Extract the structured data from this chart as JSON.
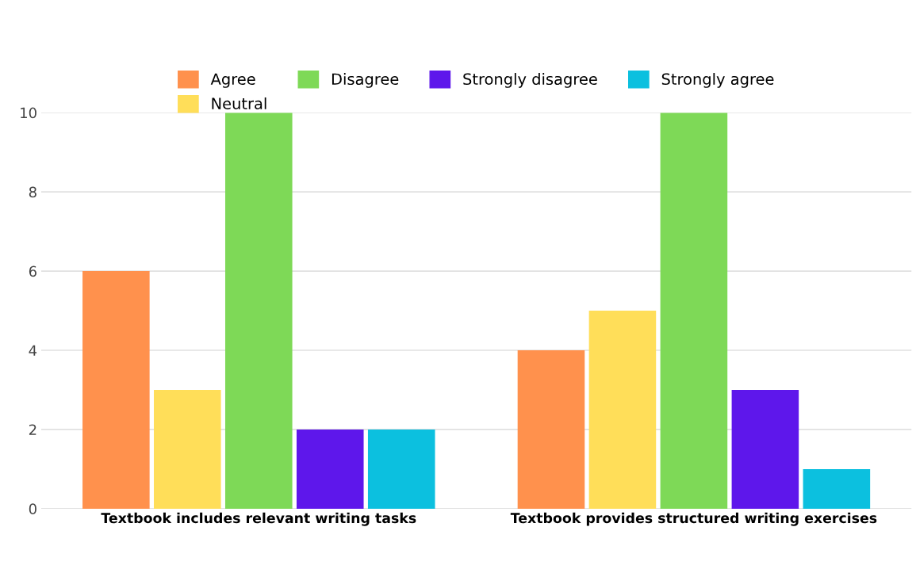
{
  "chart_data": {
    "type": "bar",
    "categories": [
      "Textbook includes relevant writing tasks",
      "Textbook provides structured writing exercises"
    ],
    "series": [
      {
        "name": "Agree",
        "color": "#ff914d",
        "values": [
          6,
          4
        ]
      },
      {
        "name": "Neutral",
        "color": "#ffde59",
        "values": [
          3,
          5
        ]
      },
      {
        "name": "Disagree",
        "color": "#7ed957",
        "values": [
          10,
          10
        ]
      },
      {
        "name": "Strongly disagree",
        "color": "#5e17eb",
        "values": [
          2,
          3
        ]
      },
      {
        "name": "Strongly agree",
        "color": "#0cc0df",
        "values": [
          2,
          1
        ]
      }
    ],
    "ylim": [
      0,
      10
    ],
    "yticks": [
      0,
      2,
      4,
      6,
      8,
      10
    ],
    "grid": "y",
    "legend": "top"
  }
}
